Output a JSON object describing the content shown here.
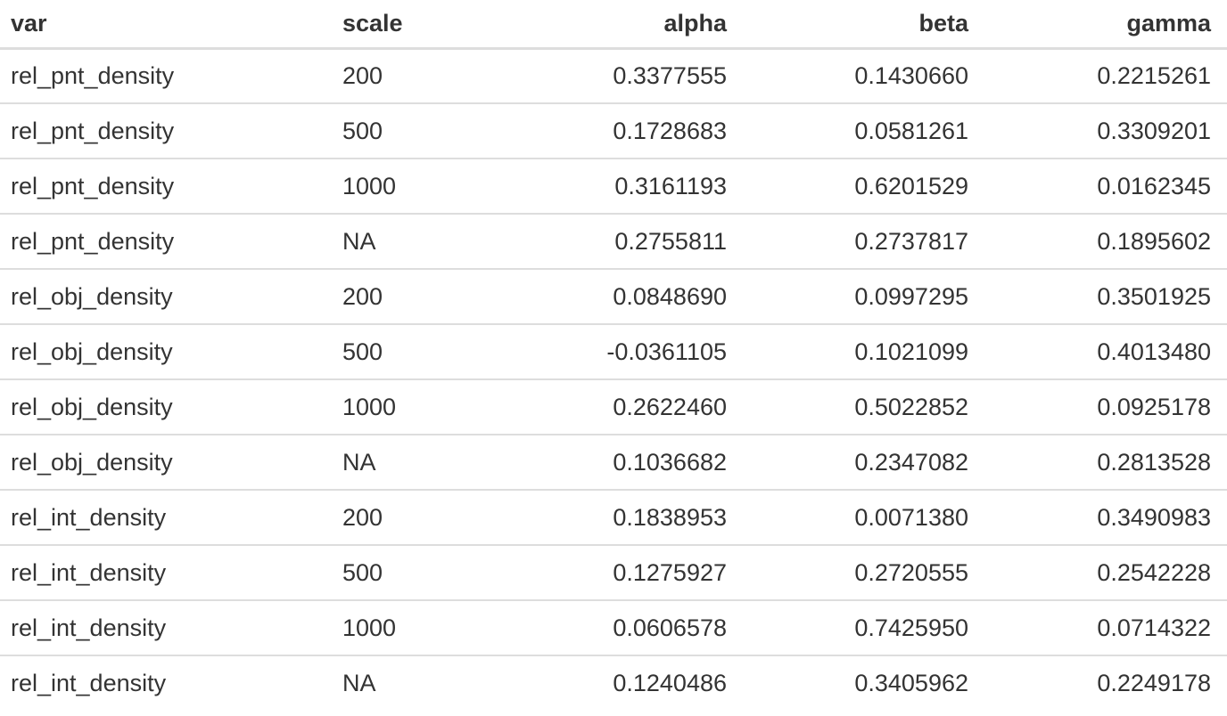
{
  "table": {
    "headers": [
      "var",
      "scale",
      "alpha",
      "beta",
      "gamma"
    ],
    "rows": [
      [
        "rel_pnt_density",
        "200",
        "0.3377555",
        "0.1430660",
        "0.2215261"
      ],
      [
        "rel_pnt_density",
        "500",
        "0.1728683",
        "0.0581261",
        "0.3309201"
      ],
      [
        "rel_pnt_density",
        "1000",
        "0.3161193",
        "0.6201529",
        "0.0162345"
      ],
      [
        "rel_pnt_density",
        "NA",
        "0.2755811",
        "0.2737817",
        "0.1895602"
      ],
      [
        "rel_obj_density",
        "200",
        "0.0848690",
        "0.0997295",
        "0.3501925"
      ],
      [
        "rel_obj_density",
        "500",
        "-0.0361105",
        "0.1021099",
        "0.4013480"
      ],
      [
        "rel_obj_density",
        "1000",
        "0.2622460",
        "0.5022852",
        "0.0925178"
      ],
      [
        "rel_obj_density",
        "NA",
        "0.1036682",
        "0.2347082",
        "0.2813528"
      ],
      [
        "rel_int_density",
        "200",
        "0.1838953",
        "0.0071380",
        "0.3490983"
      ],
      [
        "rel_int_density",
        "500",
        "0.1275927",
        "0.2720555",
        "0.2542228"
      ],
      [
        "rel_int_density",
        "1000",
        "0.0606578",
        "0.7425950",
        "0.0714322"
      ],
      [
        "rel_int_density",
        "NA",
        "0.1240486",
        "0.3405962",
        "0.2249178"
      ]
    ]
  }
}
